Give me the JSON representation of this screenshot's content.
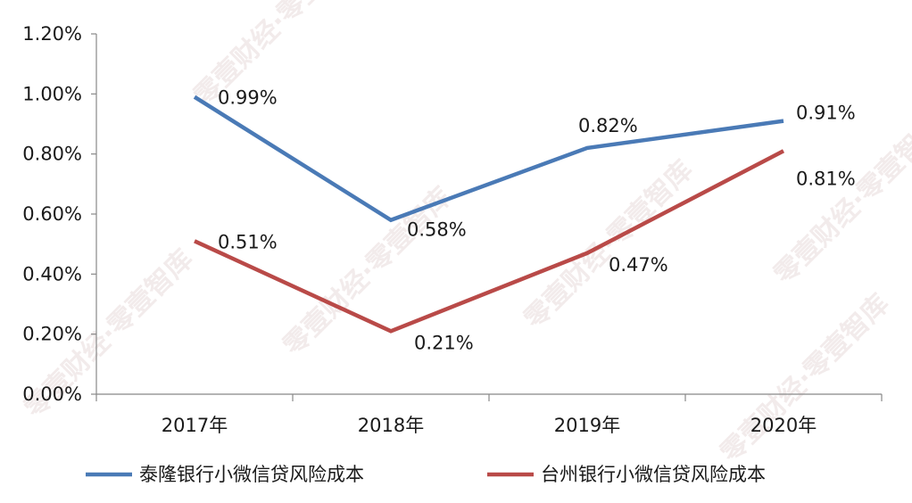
{
  "chart_data": {
    "type": "line",
    "categories": [
      "2017年",
      "2018年",
      "2019年",
      "2020年"
    ],
    "series": [
      {
        "name": "泰隆银行小微信贷风险成本",
        "values": [
          0.99,
          0.58,
          0.82,
          0.91
        ],
        "labels": [
          "0.99%",
          "0.58%",
          "0.82%",
          "0.91%"
        ],
        "color": "#4a7ab6"
      },
      {
        "name": "台州银行小微信贷风险成本",
        "values": [
          0.51,
          0.21,
          0.47,
          0.81
        ],
        "labels": [
          "0.51%",
          "0.21%",
          "0.47%",
          "0.81%"
        ],
        "color": "#b94a48"
      }
    ],
    "y_ticks": [
      "0.00%",
      "0.20%",
      "0.40%",
      "0.60%",
      "0.80%",
      "1.00%",
      "1.20%"
    ],
    "ylim": [
      0,
      1.2
    ],
    "grid": false,
    "legend_position": "bottom",
    "title": "",
    "xlabel": "",
    "ylabel": ""
  },
  "watermark": "零壹财经·零壹智库"
}
